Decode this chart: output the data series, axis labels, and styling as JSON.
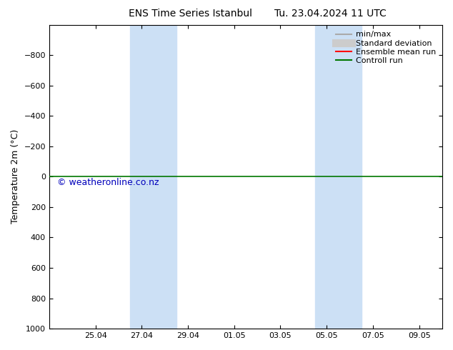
{
  "title_left": "ENS Time Series Istanbul",
  "title_right": "Tu. 23.04.2024 11 UTC",
  "ylabel": "Temperature 2m (°C)",
  "watermark": "© weatheronline.co.nz",
  "xtick_labels": [
    "25.04",
    "27.04",
    "29.04",
    "01.05",
    "03.05",
    "05.05",
    "07.05",
    "09.05"
  ],
  "xtick_positions": [
    2,
    4,
    6,
    8,
    10,
    12,
    14,
    16
  ],
  "xlim": [
    0,
    17
  ],
  "ylim_top": -1000,
  "ylim_bottom": 1000,
  "yticks": [
    -800,
    -600,
    -400,
    -200,
    0,
    200,
    400,
    600,
    800,
    1000
  ],
  "background_color": "#ffffff",
  "plot_bg_color": "#ffffff",
  "shaded_bands": [
    {
      "x_start": 3.5,
      "x_end": 4.5
    },
    {
      "x_start": 4.5,
      "x_end": 5.5
    },
    {
      "x_start": 11.5,
      "x_end": 12.5
    },
    {
      "x_start": 12.5,
      "x_end": 13.5
    }
  ],
  "shaded_color": "#cce0f5",
  "control_run_y": 0,
  "legend_items": [
    {
      "label": "min/max",
      "color": "#aaaaaa",
      "lw": 1.5,
      "type": "line"
    },
    {
      "label": "Standard deviation",
      "color": "#cccccc",
      "lw": 8,
      "type": "line"
    },
    {
      "label": "Ensemble mean run",
      "color": "#ff0000",
      "lw": 1.5,
      "type": "line"
    },
    {
      "label": "Controll run",
      "color": "#007700",
      "lw": 1.5,
      "type": "line"
    }
  ],
  "font_size_title": 10,
  "font_size_axis": 9,
  "font_size_tick": 8,
  "font_size_legend": 8,
  "font_size_watermark": 9,
  "watermark_color": "#0000bb",
  "control_run_color": "#007700",
  "ensemble_mean_color": "#ff0000",
  "minmax_color": "#aaaaaa",
  "stddev_color": "#cccccc",
  "title_font": "DejaVu Sans"
}
